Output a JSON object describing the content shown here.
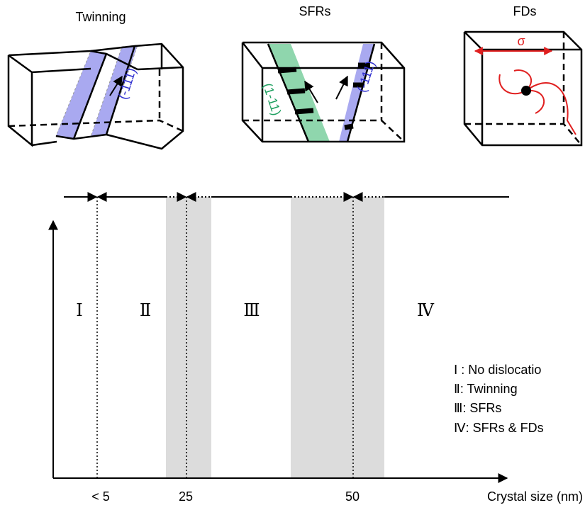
{
  "panels": [
    {
      "title": "Twinning",
      "plane_labels": [
        "(-111)"
      ]
    },
    {
      "title": "SFRs",
      "plane_labels": [
        "(1-11)",
        "(-111)"
      ]
    },
    {
      "title": "FDs",
      "stress_label": "σ"
    }
  ],
  "diagram": {
    "regions": [
      "Ⅰ",
      "Ⅱ",
      "Ⅲ",
      "Ⅳ"
    ],
    "x_labels": [
      "< 5",
      "25",
      "50"
    ],
    "x_axis_label": "Crystal size (nm)",
    "legend": [
      "Ⅰ : No dislocatio",
      "Ⅱ: Twinning",
      "Ⅲ: SFRs",
      "Ⅳ: SFRs & FDs"
    ]
  }
}
